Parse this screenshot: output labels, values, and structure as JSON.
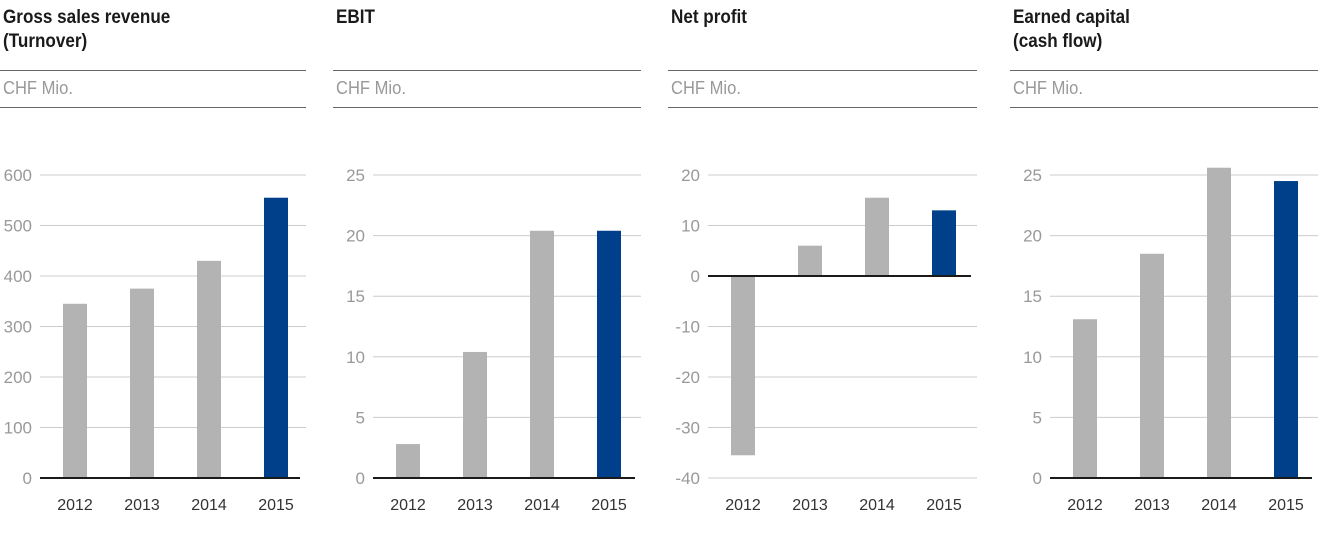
{
  "colors": {
    "bar_default": "#b3b3b3",
    "bar_highlight": "#003f8a",
    "grid": "#cccccc",
    "baseline": "#1a1a1a"
  },
  "charts": [
    {
      "title": "Gross sales revenue\n(Turnover)",
      "unit": "CHF Mio.",
      "chart_data": {
        "type": "bar",
        "title": "Gross sales revenue (Turnover)",
        "ylabel": "CHF Mio.",
        "categories": [
          "2012",
          "2013",
          "2014",
          "2015"
        ],
        "values": [
          345,
          375,
          430,
          555
        ],
        "highlight_index": 3,
        "ylim": [
          0,
          600
        ],
        "yticks": [
          0,
          100,
          200,
          300,
          400,
          500,
          600
        ],
        "grid": true
      }
    },
    {
      "title": "EBIT",
      "unit": "CHF Mio.",
      "chart_data": {
        "type": "bar",
        "title": "EBIT",
        "ylabel": "CHF Mio.",
        "categories": [
          "2012",
          "2013",
          "2014",
          "2015"
        ],
        "values": [
          2.8,
          10.4,
          20.4,
          20.4
        ],
        "highlight_index": 3,
        "ylim": [
          0,
          25
        ],
        "yticks": [
          0,
          5,
          10,
          15,
          20,
          25
        ],
        "grid": true
      }
    },
    {
      "title": "Net profit",
      "unit": "CHF Mio.",
      "chart_data": {
        "type": "bar",
        "title": "Net profit",
        "ylabel": "CHF Mio.",
        "categories": [
          "2012",
          "2013",
          "2014",
          "2015"
        ],
        "values": [
          -35.5,
          6,
          15.5,
          13
        ],
        "highlight_index": 3,
        "ylim": [
          -40,
          20
        ],
        "yticks": [
          -40,
          -30,
          -20,
          -10,
          0,
          10,
          20
        ],
        "grid": true
      }
    },
    {
      "title": "Earned capital\n(cash flow)",
      "unit": "CHF Mio.",
      "chart_data": {
        "type": "bar",
        "title": "Earned capital (cash flow)",
        "ylabel": "CHF Mio.",
        "categories": [
          "2012",
          "2013",
          "2014",
          "2015"
        ],
        "values": [
          13.1,
          18.5,
          25.6,
          24.5
        ],
        "highlight_index": 3,
        "ylim": [
          0,
          25
        ],
        "yticks": [
          0,
          5,
          10,
          15,
          20,
          25
        ],
        "grid": true
      }
    }
  ]
}
